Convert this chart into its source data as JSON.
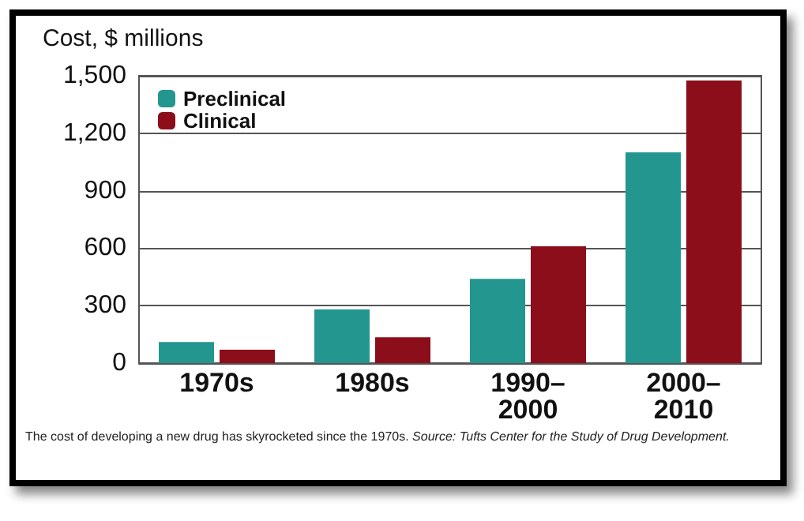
{
  "chart_data": {
    "type": "bar",
    "ylabel": "Cost, $ millions",
    "categories": [
      "1970s",
      "1980s",
      "1990–2000",
      "2000–2010"
    ],
    "series": [
      {
        "name": "Preclinical",
        "color": "#23968f",
        "values": [
          110,
          280,
          440,
          1100
        ]
      },
      {
        "name": "Clinical",
        "color": "#8b0e1a",
        "values": [
          70,
          135,
          610,
          1475
        ]
      }
    ],
    "ylim": [
      0,
      1500
    ],
    "yticks": [
      0,
      300,
      600,
      900,
      {
        "value": 1200,
        "label": "1,200"
      },
      {
        "value": 1500,
        "label": "1,500"
      }
    ],
    "grid": "y",
    "legend": "top left",
    "annotations": [
      "The cost of developing a new drug has skyrocketed since the 1970s.",
      "Source: Tufts Center for the Study of Drug Development."
    ]
  }
}
